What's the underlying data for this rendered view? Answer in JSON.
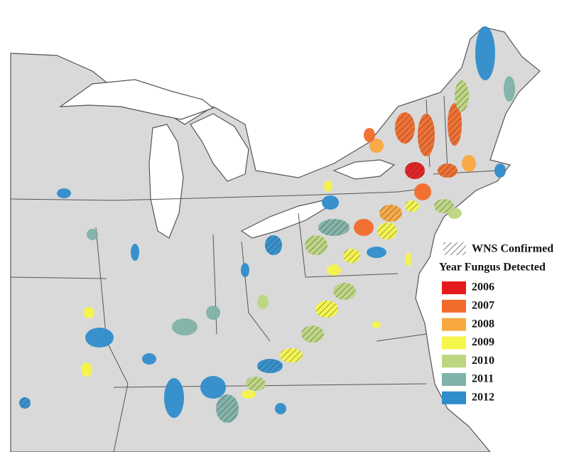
{
  "legend": {
    "hatch_label": "WNS Confirmed",
    "title": "Year Fungus Detected",
    "items": [
      {
        "label": "2006",
        "color": "#e41a1c"
      },
      {
        "label": "2007",
        "color": "#f26b2b"
      },
      {
        "label": "2008",
        "color": "#f9a83f"
      },
      {
        "label": "2009",
        "color": "#f6f54a"
      },
      {
        "label": "2010",
        "color": "#bdd680"
      },
      {
        "label": "2011",
        "color": "#7fb2a8"
      },
      {
        "label": "2012",
        "color": "#2f8dcc"
      }
    ]
  }
}
